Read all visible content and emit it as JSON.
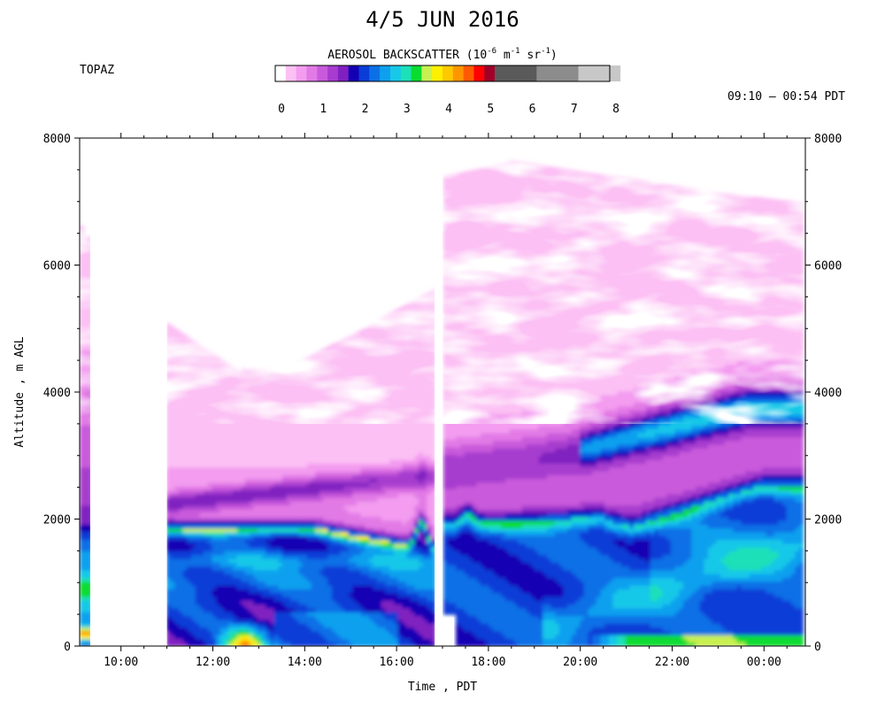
{
  "chart_data": {
    "type": "heatmap",
    "title": "4/5 JUN 2016",
    "site": "TOPAZ",
    "time_range": "09:10 – 00:54 PDT",
    "colorbar": {
      "title_main": "AEROSOL BACKSCATTER (10",
      "title_exp1": "-6",
      "title_mid1": " m",
      "title_exp2": "-1",
      "title_mid2": " sr",
      "title_exp3": "-1",
      "title_end": ")",
      "tick_labels": [
        "0",
        "1",
        "2",
        "3",
        "4",
        "5",
        "6",
        "7",
        "8"
      ],
      "range": [
        0,
        8
      ],
      "colors": [
        "#ffffff",
        "#fcc0f4",
        "#f39cf0",
        "#e27ae6",
        "#c95adb",
        "#a73ccf",
        "#8020c0",
        "#1400b4",
        "#0a3cd7",
        "#0b70e6",
        "#0ea0ef",
        "#17c8e8",
        "#1ce0b8",
        "#0adc30",
        "#c8f050",
        "#fff000",
        "#ffc800",
        "#ff9600",
        "#ff5a00",
        "#ff0000",
        "#a00028",
        "#5a5a5a",
        "#8c8c8c",
        "#c8c8c8"
      ]
    },
    "y_axis": {
      "label": "Altitude , m AGL",
      "range": [
        0,
        8000
      ],
      "ticks": [
        "0",
        "2000",
        "4000",
        "6000",
        "8000"
      ]
    },
    "x_axis": {
      "label": "Time , PDT",
      "ticks": [
        "10:00",
        "12:00",
        "14:00",
        "16:00",
        "18:00",
        "20:00",
        "22:00",
        "00:00"
      ],
      "tick_hours": [
        10,
        12,
        14,
        16,
        18,
        20,
        22,
        24
      ],
      "range_hours": [
        9.1,
        24.9
      ]
    }
  }
}
